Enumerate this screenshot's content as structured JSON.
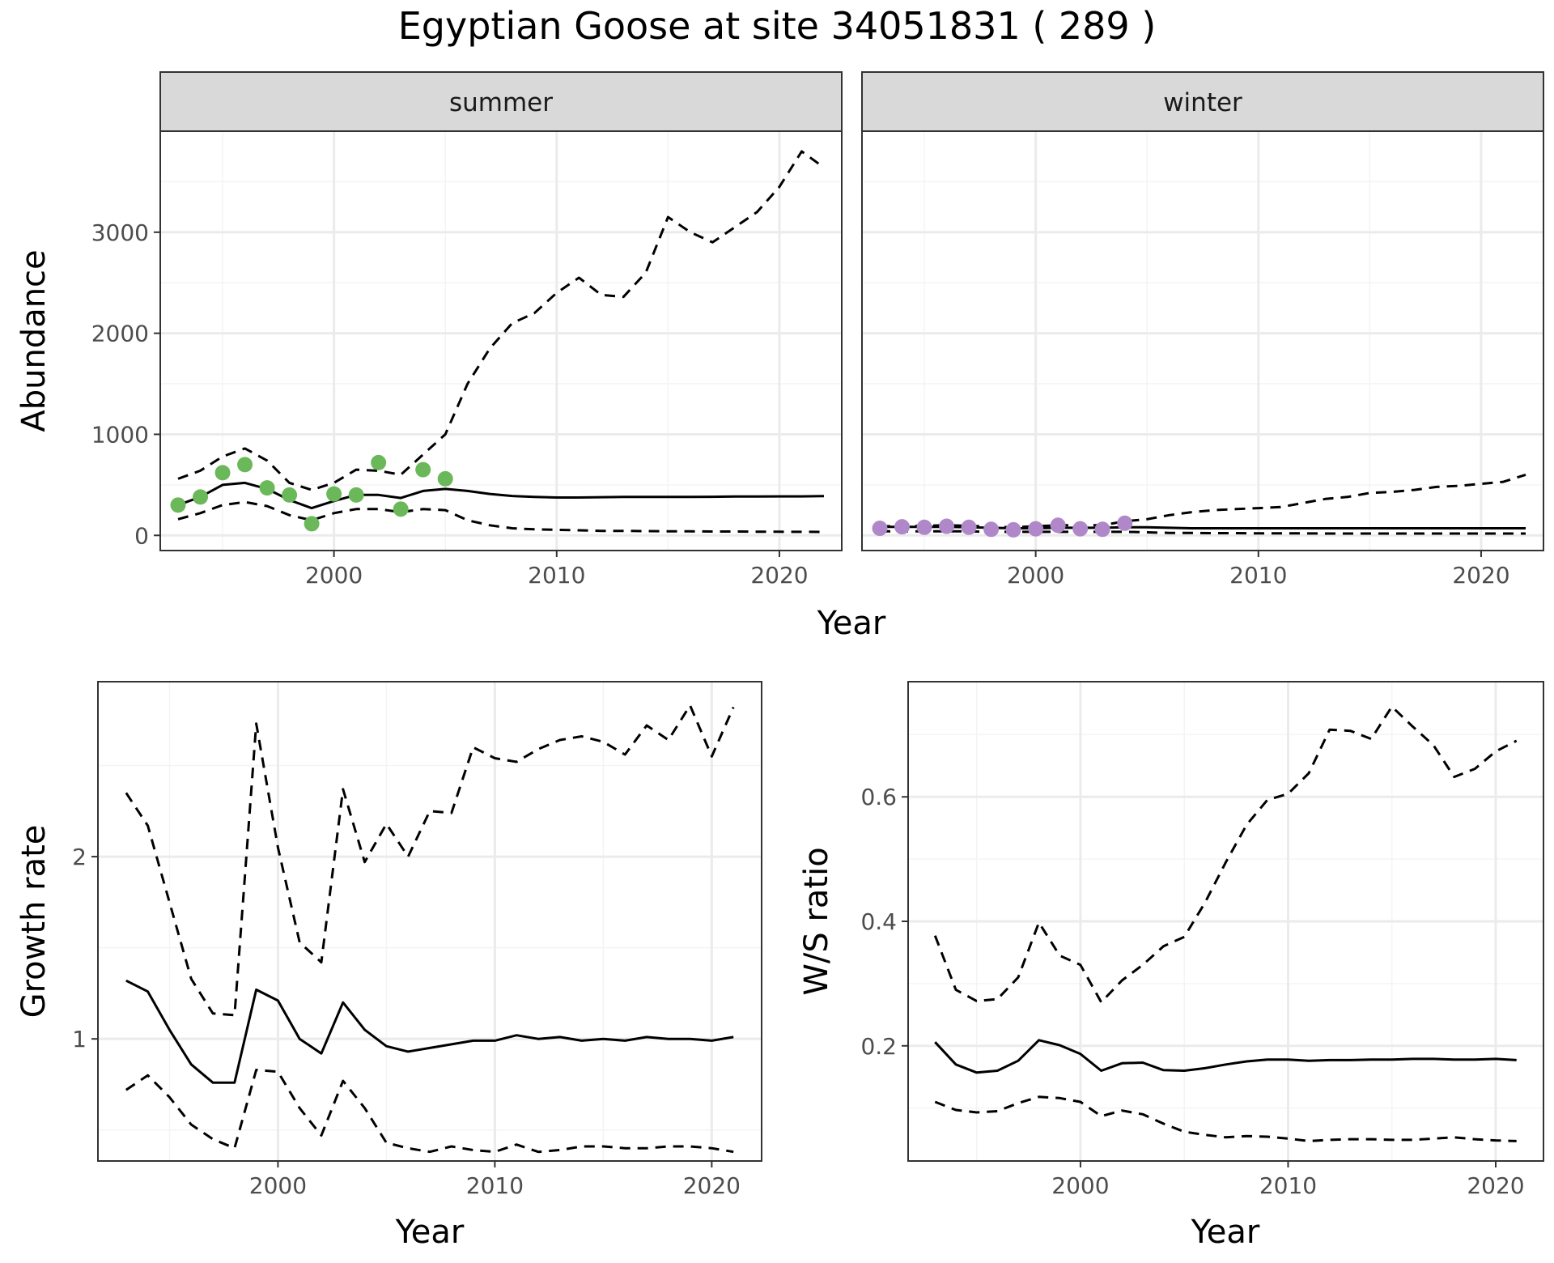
{
  "title": "Egyptian Goose at site 34051831 ( 289 )",
  "colors": {
    "summer_points": "#6bb85a",
    "winter_points": "#b088c9",
    "line": "#000000",
    "grid_major": "#ebebeb",
    "grid_minor": "#f4f4f4",
    "strip_fill": "#d9d9d9",
    "panel_border": "#333333"
  },
  "chart_data": [
    {
      "type": "line",
      "facet": "summer",
      "xlabel": "Year",
      "ylabel": "Abundance",
      "xlim": [
        1992.2,
        2022.8
      ],
      "ylim": [
        -150,
        4000
      ],
      "xticks": [
        2000,
        2010,
        2020
      ],
      "yticks": [
        0,
        1000,
        2000,
        3000
      ],
      "grid": true,
      "x": [
        1993,
        1994,
        1995,
        1996,
        1997,
        1998,
        1999,
        2000,
        2001,
        2002,
        2003,
        2004,
        2005,
        2006,
        2007,
        2008,
        2009,
        2010,
        2011,
        2012,
        2013,
        2014,
        2015,
        2016,
        2017,
        2018,
        2019,
        2020,
        2021,
        2022
      ],
      "series": [
        {
          "style": "solid",
          "values": [
            300,
            380,
            500,
            520,
            460,
            350,
            270,
            340,
            400,
            400,
            370,
            440,
            460,
            440,
            410,
            390,
            380,
            375,
            375,
            378,
            380,
            380,
            380,
            380,
            382,
            384,
            385,
            386,
            386,
            388
          ]
        },
        {
          "style": "dashed",
          "values": [
            560,
            640,
            780,
            860,
            740,
            520,
            450,
            520,
            650,
            640,
            600,
            800,
            1000,
            1500,
            1850,
            2100,
            2200,
            2400,
            2550,
            2380,
            2360,
            2600,
            3150,
            3000,
            2900,
            3050,
            3200,
            3450,
            3800,
            3640
          ]
        },
        {
          "style": "dashed",
          "values": [
            160,
            220,
            300,
            330,
            290,
            200,
            150,
            220,
            260,
            260,
            230,
            260,
            250,
            150,
            100,
            70,
            60,
            55,
            50,
            45,
            45,
            42,
            40,
            40,
            38,
            38,
            36,
            36,
            35,
            34
          ]
        }
      ],
      "points": {
        "x": [
          1993,
          1994,
          1995,
          1996,
          1997,
          1998,
          1999,
          2000,
          2001,
          2002,
          2003,
          2004,
          2005
        ],
        "y": [
          300,
          380,
          620,
          700,
          470,
          400,
          115,
          410,
          400,
          720,
          260,
          650,
          560
        ]
      }
    },
    {
      "type": "line",
      "facet": "winter",
      "xlabel": "Year",
      "ylabel": "Abundance",
      "xlim": [
        1992.2,
        2022.8
      ],
      "ylim": [
        -150,
        4000
      ],
      "xticks": [
        2000,
        2010,
        2020
      ],
      "yticks": [
        0,
        1000,
        2000,
        3000
      ],
      "grid": true,
      "x": [
        1993,
        1994,
        1995,
        1996,
        1997,
        1998,
        1999,
        2000,
        2001,
        2002,
        2003,
        2004,
        2005,
        2006,
        2007,
        2008,
        2009,
        2010,
        2011,
        2012,
        2013,
        2014,
        2015,
        2016,
        2017,
        2018,
        2019,
        2020,
        2021,
        2022
      ],
      "series": [
        {
          "style": "solid",
          "values": [
            85,
            85,
            85,
            85,
            80,
            75,
            70,
            70,
            75,
            75,
            75,
            80,
            80,
            75,
            70,
            70,
            70,
            70,
            70,
            70,
            70,
            70,
            70,
            70,
            70,
            70,
            70,
            70,
            70,
            70
          ]
        },
        {
          "style": "dashed",
          "values": [
            90,
            90,
            95,
            100,
            95,
            85,
            80,
            90,
            100,
            100,
            100,
            140,
            160,
            200,
            230,
            250,
            260,
            270,
            280,
            320,
            360,
            380,
            420,
            430,
            450,
            480,
            490,
            510,
            530,
            600
          ]
        },
        {
          "style": "dashed",
          "values": [
            40,
            40,
            40,
            40,
            40,
            35,
            35,
            35,
            35,
            35,
            35,
            35,
            30,
            25,
            25,
            22,
            22,
            20,
            20,
            20,
            18,
            18,
            18,
            18,
            18,
            18,
            18,
            18,
            18,
            18
          ]
        }
      ],
      "points": {
        "x": [
          1993,
          1994,
          1995,
          1996,
          1997,
          1998,
          1999,
          2000,
          2001,
          2002,
          2003,
          2004
        ],
        "y": [
          70,
          85,
          80,
          90,
          80,
          60,
          55,
          65,
          100,
          65,
          60,
          120
        ]
      }
    },
    {
      "type": "line",
      "xlabel": "Year",
      "ylabel": "Growth rate",
      "xlim": [
        1991.7,
        2022.3
      ],
      "ylim": [
        0.33,
        2.96
      ],
      "xticks": [
        2000,
        2010,
        2020
      ],
      "yticks": [
        1,
        2
      ],
      "grid": true,
      "x": [
        1993,
        1994,
        1995,
        1996,
        1997,
        1998,
        1999,
        2000,
        2001,
        2002,
        2003,
        2004,
        2005,
        2006,
        2007,
        2008,
        2009,
        2010,
        2011,
        2012,
        2013,
        2014,
        2015,
        2016,
        2017,
        2018,
        2019,
        2020,
        2021
      ],
      "series": [
        {
          "style": "solid",
          "values": [
            1.32,
            1.26,
            1.05,
            0.86,
            0.76,
            0.76,
            1.27,
            1.21,
            1.0,
            0.92,
            1.2,
            1.05,
            0.96,
            0.93,
            0.95,
            0.97,
            0.99,
            0.99,
            1.02,
            1.0,
            1.01,
            0.99,
            1.0,
            0.99,
            1.01,
            1.0,
            1.0,
            0.99,
            1.01
          ]
        },
        {
          "style": "dashed",
          "values": [
            2.35,
            2.17,
            1.75,
            1.33,
            1.14,
            1.13,
            2.73,
            2.05,
            1.53,
            1.42,
            2.37,
            1.97,
            2.18,
            2.0,
            2.25,
            2.24,
            2.6,
            2.54,
            2.52,
            2.59,
            2.64,
            2.66,
            2.63,
            2.56,
            2.72,
            2.64,
            2.83,
            2.55,
            2.82
          ]
        },
        {
          "style": "dashed",
          "values": [
            0.72,
            0.8,
            0.68,
            0.53,
            0.45,
            0.4,
            0.83,
            0.82,
            0.62,
            0.47,
            0.77,
            0.62,
            0.43,
            0.4,
            0.38,
            0.41,
            0.39,
            0.38,
            0.42,
            0.38,
            0.39,
            0.41,
            0.41,
            0.4,
            0.4,
            0.41,
            0.41,
            0.4,
            0.38
          ]
        }
      ]
    },
    {
      "type": "line",
      "xlabel": "Year",
      "ylabel": "W/S ratio",
      "xlim": [
        1991.7,
        2022.3
      ],
      "ylim": [
        0.015,
        0.785
      ],
      "xticks": [
        2000,
        2010,
        2020
      ],
      "yticks": [
        0.2,
        0.4,
        0.6
      ],
      "grid": true,
      "x": [
        1993,
        1994,
        1995,
        1996,
        1997,
        1998,
        1999,
        2000,
        2001,
        2002,
        2003,
        2004,
        2005,
        2006,
        2007,
        2008,
        2009,
        2010,
        2011,
        2012,
        2013,
        2014,
        2015,
        2016,
        2017,
        2018,
        2019,
        2020,
        2021
      ],
      "series": [
        {
          "style": "solid",
          "values": [
            0.206,
            0.17,
            0.157,
            0.16,
            0.176,
            0.209,
            0.201,
            0.187,
            0.16,
            0.172,
            0.173,
            0.161,
            0.16,
            0.164,
            0.17,
            0.175,
            0.178,
            0.178,
            0.176,
            0.177,
            0.177,
            0.178,
            0.178,
            0.179,
            0.179,
            0.178,
            0.178,
            0.179,
            0.177
          ]
        },
        {
          "style": "dashed",
          "values": [
            0.377,
            0.29,
            0.272,
            0.275,
            0.31,
            0.398,
            0.345,
            0.33,
            0.27,
            0.305,
            0.33,
            0.36,
            0.375,
            0.43,
            0.495,
            0.555,
            0.595,
            0.605,
            0.638,
            0.708,
            0.706,
            0.693,
            0.745,
            0.713,
            0.683,
            0.632,
            0.645,
            0.673,
            0.69
          ]
        },
        {
          "style": "dashed",
          "values": [
            0.11,
            0.097,
            0.093,
            0.095,
            0.108,
            0.118,
            0.116,
            0.11,
            0.087,
            0.096,
            0.09,
            0.075,
            0.062,
            0.057,
            0.053,
            0.055,
            0.054,
            0.051,
            0.047,
            0.049,
            0.05,
            0.05,
            0.049,
            0.049,
            0.051,
            0.053,
            0.05,
            0.048,
            0.047
          ]
        }
      ]
    }
  ]
}
